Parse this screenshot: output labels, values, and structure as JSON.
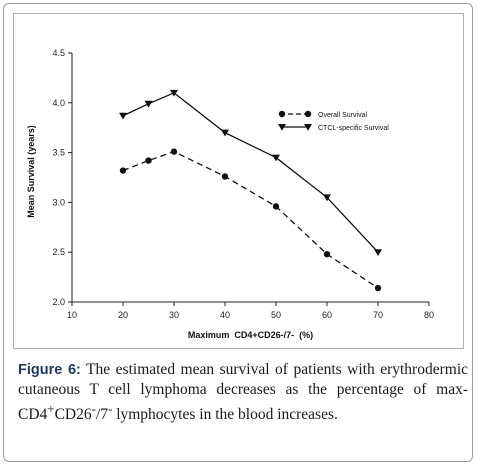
{
  "chart_data": {
    "type": "line",
    "xlabel": "Maximum  CD4+CD26-/7-  (%)",
    "ylabel": "Mean Survival (years)",
    "xlim": [
      10,
      80
    ],
    "ylim": [
      2.0,
      4.5
    ],
    "xticks": [
      "10",
      "20",
      "30",
      "40",
      "50",
      "60",
      "70",
      "80"
    ],
    "yticks": [
      "2.0",
      "2.5",
      "3.0",
      "3.5",
      "4.0",
      "4.5"
    ],
    "grid": false,
    "legend_position": "upper-right",
    "series": [
      {
        "name": "Overall Survival",
        "marker": "circle",
        "line_style": "dashed",
        "x": [
          20,
          25,
          30,
          40,
          50,
          60,
          70
        ],
        "y": [
          3.32,
          3.42,
          3.51,
          3.26,
          2.96,
          2.48,
          2.14
        ]
      },
      {
        "name": "CTCL-specific Survival",
        "marker": "triangle-down",
        "line_style": "solid",
        "x": [
          20,
          25,
          30,
          40,
          50,
          60,
          70
        ],
        "y": [
          3.87,
          3.99,
          4.1,
          3.7,
          3.45,
          3.05,
          2.5
        ]
      }
    ]
  },
  "caption": {
    "label": "Figure 6:",
    "text_before": " The estimated mean survival of patients with erythrodermic cutaneous T cell lymphoma decreases as the percentage of max-CD4",
    "sup1": "+",
    "text_mid": "CD26",
    "sup2": "-",
    "text_mid2": "/7",
    "sup3": "-",
    "text_after": " lymphocytes in the blood increases."
  }
}
